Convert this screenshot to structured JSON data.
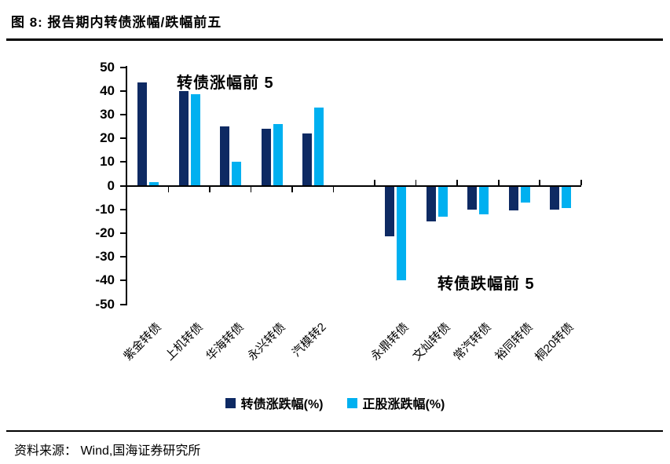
{
  "title": "图 8: 报告期内转债涨幅/跌幅前五",
  "source_note": "资料来源： Wind,国海证券研究所",
  "chart_data": {
    "type": "bar",
    "title": "报告期内转债涨幅/跌幅前五",
    "categories": [
      "紫金转债",
      "上机转债",
      "华海转债",
      "永兴转债",
      "汽模转2",
      "永鼎转债",
      "文灿转债",
      "常汽转债",
      "裕同转债",
      "桐20转债"
    ],
    "series": [
      {
        "name": "转债涨跌幅(%)",
        "color": "#0e2a63",
        "values": [
          43.5,
          40,
          25,
          24,
          22,
          -21.5,
          -15,
          -10,
          -10.5,
          -10
        ]
      },
      {
        "name": "正股涨跌幅(%)",
        "color": "#00b0f0",
        "values": [
          1.5,
          38.5,
          10,
          26,
          33,
          -40,
          -13,
          -12,
          -7,
          -9.5
        ]
      }
    ],
    "ylim": [
      -50,
      50
    ],
    "yticks": [
      {
        "label": "50",
        "value": 50
      },
      {
        "label": "40",
        "value": 40
      },
      {
        "label": "30",
        "value": 30
      },
      {
        "label": "20",
        "value": 20
      },
      {
        "label": "10",
        "value": 10
      },
      {
        "label": "0",
        "value": 0
      },
      {
        "label": "-10",
        "value": -10
      },
      {
        "label": "-20",
        "value": -20
      },
      {
        "label": "-30",
        "value": -30
      },
      {
        "label": "-40",
        "value": -40
      },
      {
        "label": "-50",
        "value": -50
      }
    ],
    "annotations": [
      {
        "text": "转债涨幅前 5",
        "anchor": "gainers"
      },
      {
        "text": "转债跌幅前 5",
        "anchor": "losers"
      }
    ],
    "legend_position": "bottom",
    "grid": false,
    "group_gap_after_index": 4
  }
}
